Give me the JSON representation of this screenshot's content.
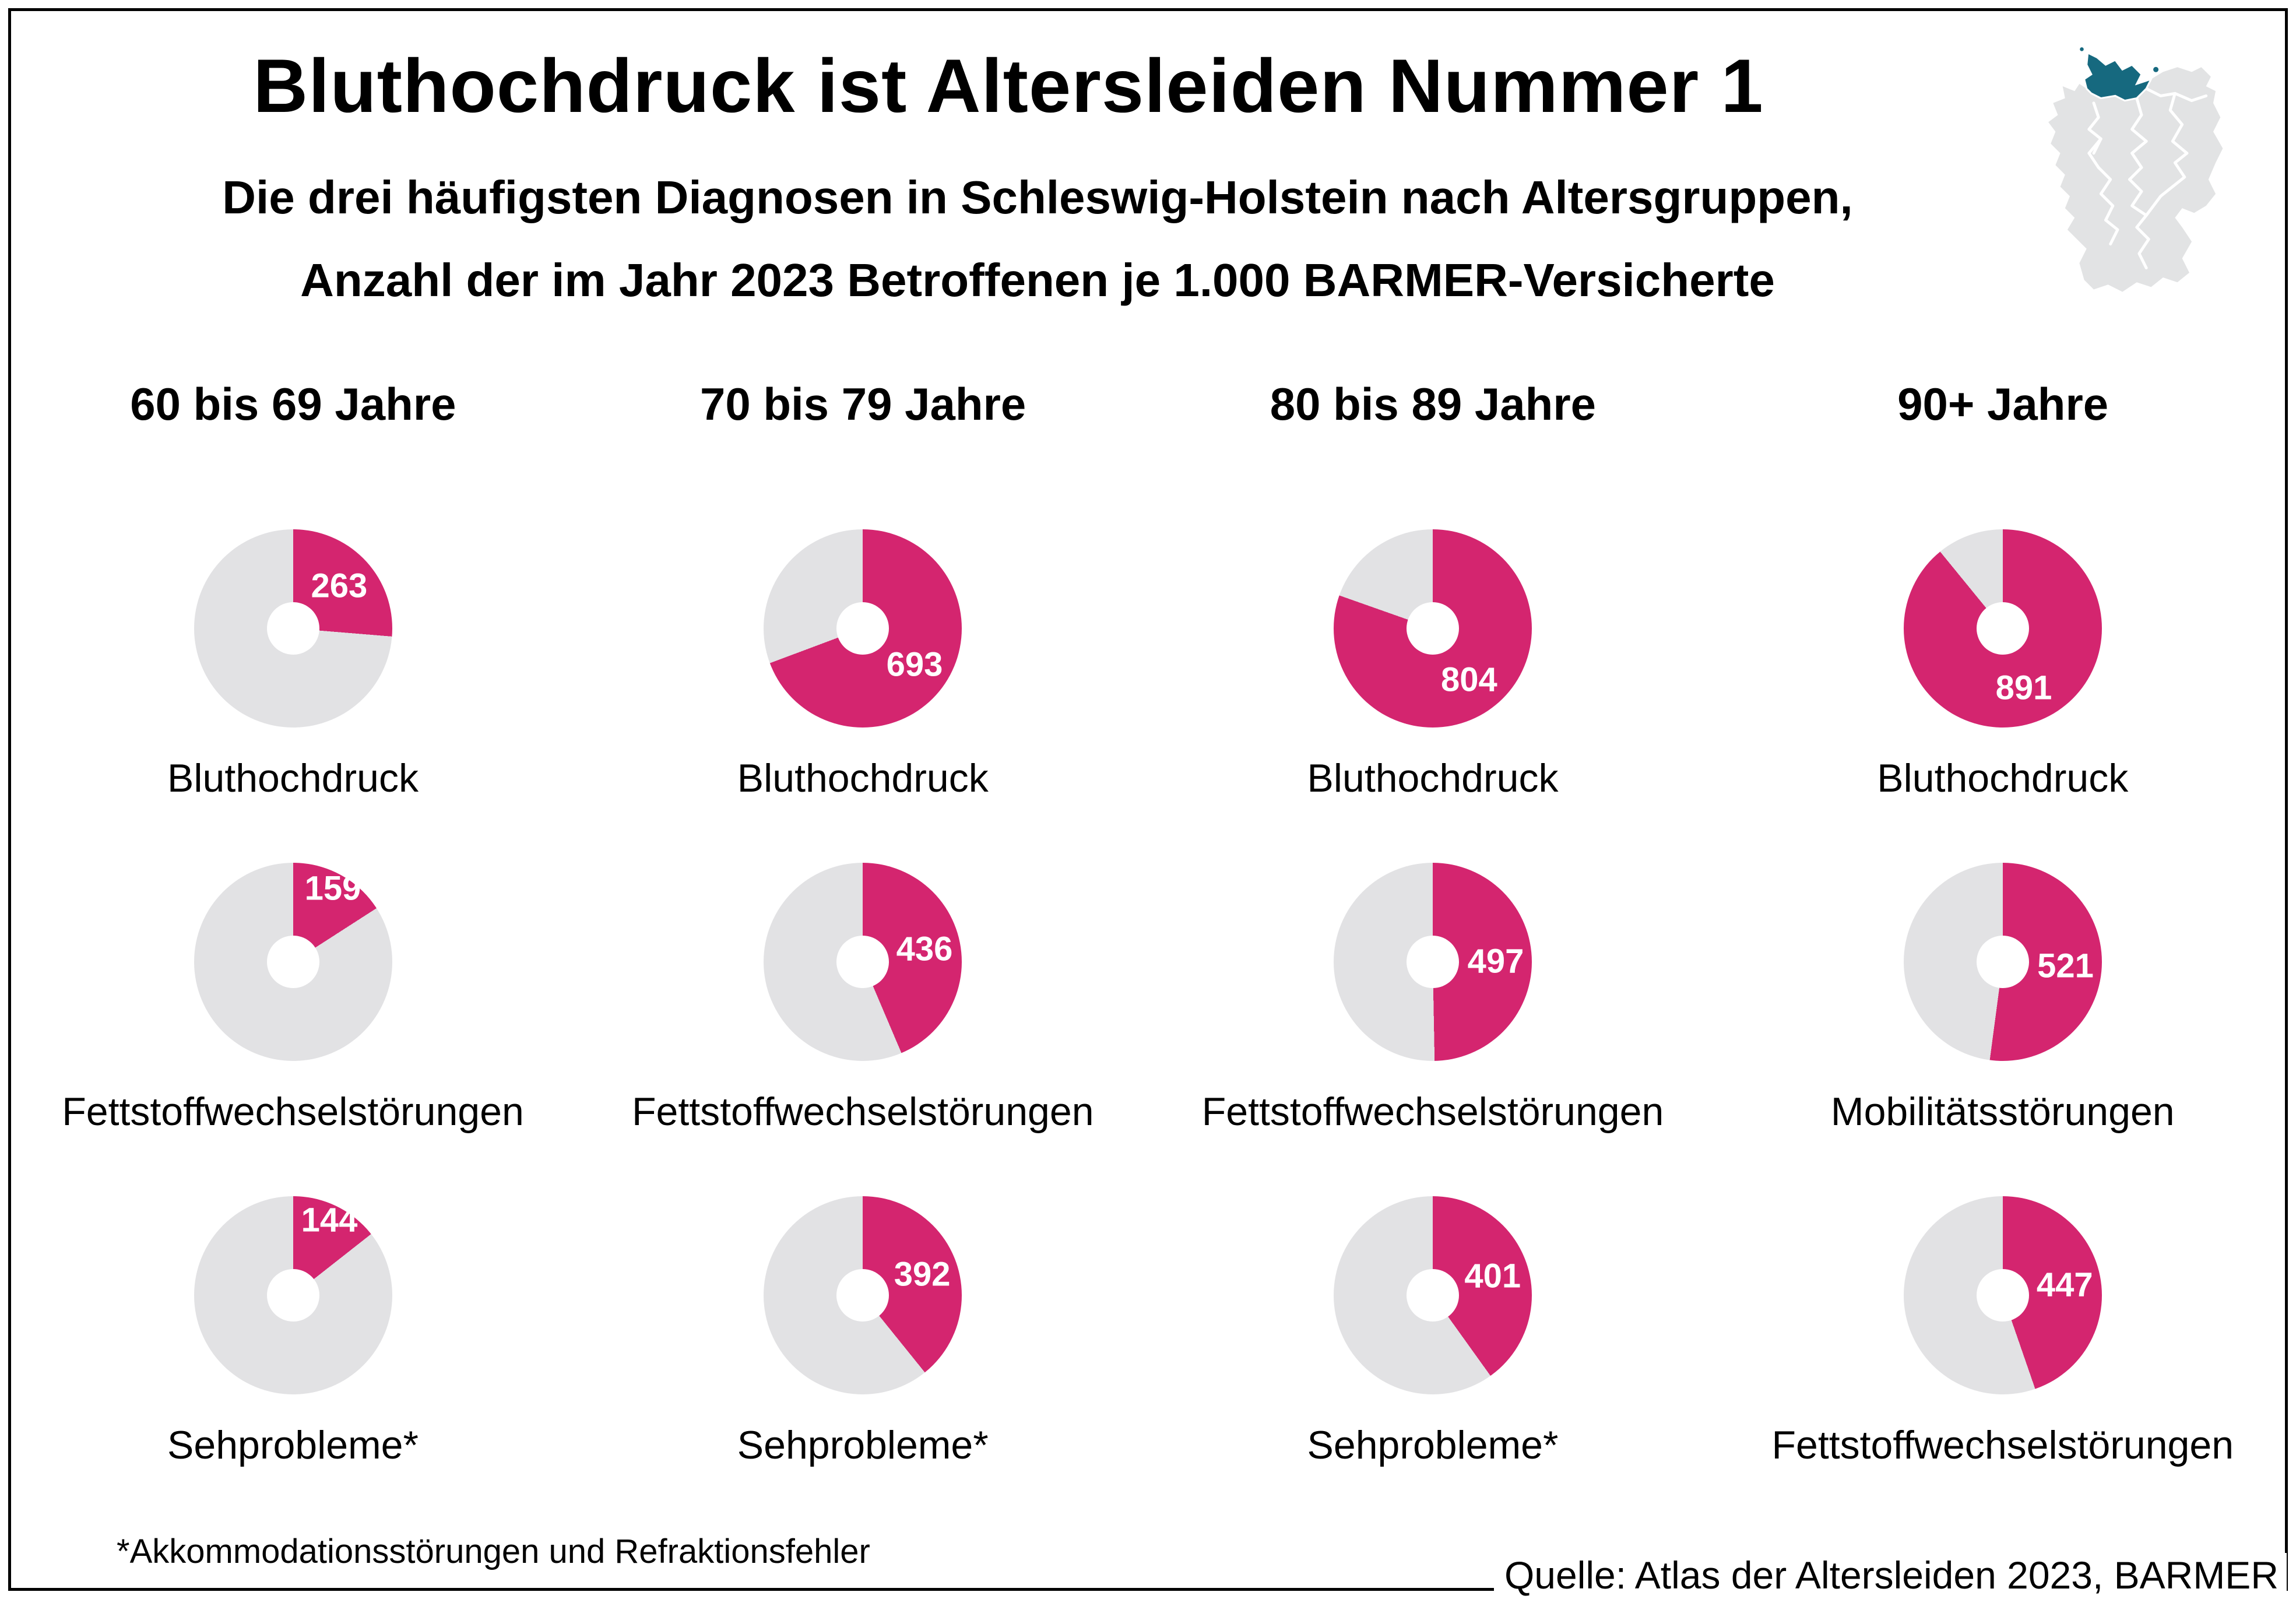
{
  "title": "Bluthochdruck ist Altersleiden Nummer 1",
  "subtitle_line1": "Die drei häufigsten Diagnosen in Schleswig-Holstein nach Altersgruppen,",
  "subtitle_line2": "Anzahl der im Jahr 2023 Betroffenen je 1.000 BARMER-Versicherte",
  "footnote": "*Akkommodationsstörungen und Refraktionsfehler",
  "source": "Quelle: Atlas der Altersleiden 2023, BARMER",
  "map": {
    "highlighted_region": "Schleswig-Holstein",
    "highlight_color": "#16697F",
    "land_color": "#E2E3E4",
    "border_color": "#FFFFFF"
  },
  "colors": {
    "accent_pink": "#D4256F",
    "slice_gray": "#E2E2E4",
    "text": "#000000"
  },
  "chart_data": {
    "type": "pie",
    "title": "Bluthochdruck ist Altersleiden Nummer 1",
    "subtitle": "Die drei häufigsten Diagnosen in Schleswig-Holstein nach Altersgruppen, Anzahl der im Jahr 2023 Betroffenen je 1.000 BARMER-Versicherte",
    "unit": "Betroffene je 1.000 BARMER-Versicherte",
    "denominator": 1000,
    "legend_position": "none",
    "columns": [
      "60 bis 69 Jahre",
      "70 bis 79 Jahre",
      "80 bis 89 Jahre",
      "90+ Jahre"
    ],
    "colors": {
      "filled": "#D4256F",
      "rest": "#E2E2E4"
    },
    "rows": [
      {
        "rank": 1,
        "cells": [
          {
            "column": "60 bis 69 Jahre",
            "label": "Bluthochdruck",
            "value": 263
          },
          {
            "column": "70 bis 79 Jahre",
            "label": "Bluthochdruck",
            "value": 693
          },
          {
            "column": "80 bis 89 Jahre",
            "label": "Bluthochdruck",
            "value": 804
          },
          {
            "column": "90+ Jahre",
            "label": "Bluthochdruck",
            "value": 891
          }
        ]
      },
      {
        "rank": 2,
        "cells": [
          {
            "column": "60 bis 69 Jahre",
            "label": "Fettstoffwechselstörungen",
            "value": 159
          },
          {
            "column": "70 bis 79 Jahre",
            "label": "Fettstoffwechselstörungen",
            "value": 436
          },
          {
            "column": "80 bis 89 Jahre",
            "label": "Fettstoffwechselstörungen",
            "value": 497
          },
          {
            "column": "90+ Jahre",
            "label": "Mobilitätsstörungen",
            "value": 521
          }
        ]
      },
      {
        "rank": 3,
        "cells": [
          {
            "column": "60 bis 69 Jahre",
            "label": "Sehprobleme*",
            "value": 144
          },
          {
            "column": "70 bis 79 Jahre",
            "label": "Sehprobleme*",
            "value": 392
          },
          {
            "column": "80 bis 89 Jahre",
            "label": "Sehprobleme*",
            "value": 401
          },
          {
            "column": "90+ Jahre",
            "label": "Fettstoffwechselstörungen",
            "value": 447
          }
        ]
      }
    ]
  }
}
